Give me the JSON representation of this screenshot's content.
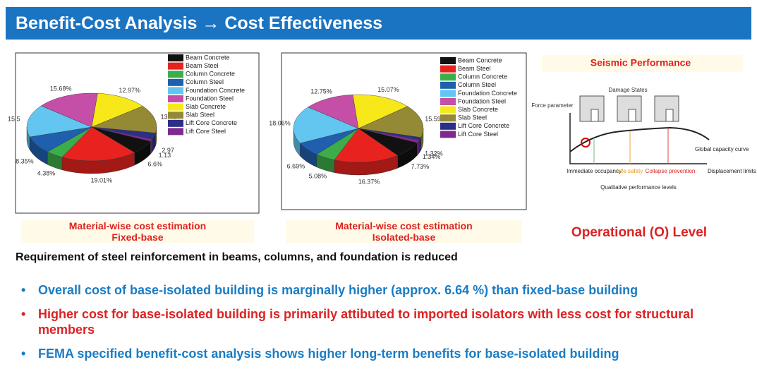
{
  "header": {
    "title": "Benefit-Cost Analysis → Cost Effectiveness"
  },
  "chart_data": [
    {
      "type": "pie",
      "categories": [
        "Beam Concrete",
        "Beam Steel",
        "Column Concrete",
        "Column Steel",
        "Foundation Concrete",
        "Foundation Steel",
        "Slab Concrete",
        "Slab Steel",
        "Lift Core Concrete",
        "Lift Core Steel"
      ],
      "values": [
        6.6,
        19.01,
        4.38,
        8.35,
        15.5,
        15.68,
        12.97,
        13.42,
        2.97,
        1.13
      ],
      "value_labels": [
        "6.6%",
        "19.01%",
        "4.38%",
        "8.35%",
        "15.5",
        "15.68%",
        "12.97%",
        "13.42",
        "2.97",
        "1.13"
      ],
      "colors": [
        "#111111",
        "#e8231f",
        "#3cae49",
        "#1f5fae",
        "#62c6f0",
        "#c54fa6",
        "#f7e81a",
        "#948a35",
        "#2b2f86",
        "#7d2a8f"
      ],
      "caption": [
        "Material-wise cost estimation",
        "Fixed-base"
      ]
    },
    {
      "type": "pie",
      "categories": [
        "Beam Concrete",
        "Beam Steel",
        "Column Concrete",
        "Column Steel",
        "Foundation Concrete",
        "Foundation Steel",
        "Slab Concrete",
        "Slab Steel",
        "Lift Core Concrete",
        "Lift Core Steel"
      ],
      "values": [
        7.73,
        16.37,
        5.08,
        6.69,
        18.06,
        12.75,
        15.07,
        15.59,
        1.32,
        1.34
      ],
      "value_labels": [
        "7.73%",
        "16.37%",
        "5.08%",
        "6.69%",
        "18.06%",
        "12.75%",
        "15.07%",
        "15.59%",
        "1.32%",
        "1.34%"
      ],
      "colors": [
        "#111111",
        "#e8231f",
        "#3cae49",
        "#1f5fae",
        "#62c6f0",
        "#c54fa6",
        "#f7e81a",
        "#948a35",
        "#2b2f86",
        "#7d2a8f"
      ],
      "caption": [
        "Material-wise cost estimation",
        "Isolated-base"
      ]
    }
  ],
  "diagram": {
    "title": "Seismic Performance",
    "damage_states": "Damage States",
    "y_label": "Force parameter",
    "levels": [
      "Immediate occupancy",
      "Life safety",
      "Collapse prevention"
    ],
    "curve_label": "Global capacity curve",
    "x_label": "Displacement limits",
    "x_caption": "Qualitative performance levels",
    "result": "Operational (O) Level"
  },
  "statement": "Requirement of steel reinforcement in beams, columns, and foundation is reduced",
  "bullets": [
    "Overall cost of base-isolated building is marginally higher (approx. 6.64 %) than fixed-base building",
    "Higher cost for base-isolated building is primarily attibuted to imported isolators with less cost for structural members",
    "FEMA specified benefit-cost analysis shows higher long-term benefits for base-isolated building"
  ]
}
